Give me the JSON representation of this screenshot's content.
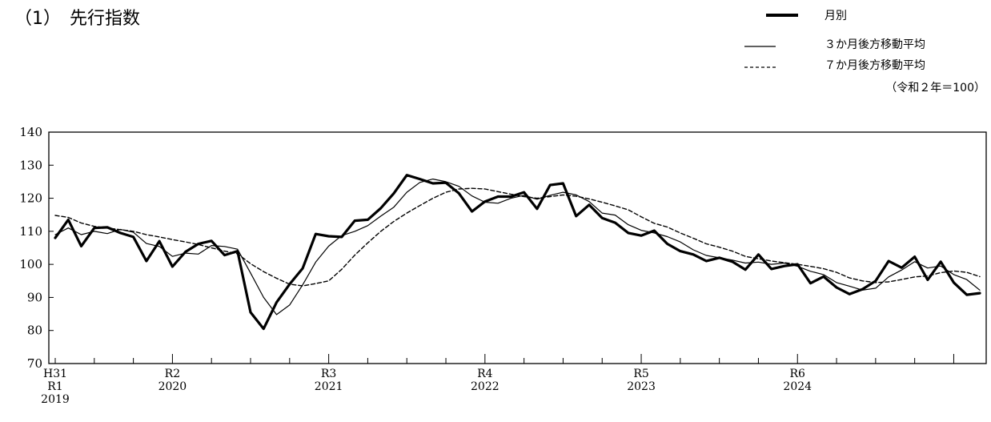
{
  "page": {
    "title": "（1）　先行指数",
    "unit_note": "（令和２年＝100）"
  },
  "chart_data": {
    "type": "line",
    "title": "（1）　先行指数",
    "ylim": [
      70,
      140
    ],
    "yticks": [
      70,
      80,
      90,
      100,
      110,
      120,
      130,
      140
    ],
    "grid": false,
    "legend_position": "top-right",
    "x_period": {
      "start": "2019-04",
      "end": "2024-12",
      "step": "month"
    },
    "x_tick_labels": [
      {
        "month": "2019-04",
        "lines": [
          "H31",
          "R1",
          "2019"
        ]
      },
      {
        "month": "2020-01",
        "lines": [
          "R2",
          "2020"
        ]
      },
      {
        "month": "2021-01",
        "lines": [
          "R3",
          "2021"
        ]
      },
      {
        "month": "2022-01",
        "lines": [
          "R4",
          "2022"
        ]
      },
      {
        "month": "2023-01",
        "lines": [
          "R5",
          "2023"
        ]
      },
      {
        "month": "2024-01",
        "lines": [
          "R6",
          "2024"
        ]
      }
    ],
    "series": [
      {
        "name": "月別",
        "style": "thick",
        "values": [
          108.0,
          113.5,
          105.5,
          111.0,
          111.2,
          109.5,
          108.3,
          101.0,
          107.0,
          99.3,
          103.8,
          106.2,
          107.1,
          102.8,
          104.0,
          85.5,
          80.5,
          88.5,
          94.0,
          98.8,
          109.2,
          108.5,
          108.3,
          113.2,
          113.5,
          117.0,
          121.5,
          127.0,
          125.8,
          124.5,
          124.7,
          121.5,
          116.0,
          119.0,
          120.5,
          120.5,
          121.8,
          116.8,
          124.0,
          124.5,
          114.6,
          118.0,
          114.0,
          112.6,
          109.5,
          108.7,
          110.2,
          106.2,
          104.0,
          103.0,
          101.0,
          102.0,
          100.8,
          98.4,
          103.0,
          98.6,
          99.5,
          100.0,
          94.3,
          96.3,
          93.0,
          91.0,
          92.5,
          95.0,
          101.0,
          99.0,
          102.3,
          95.3,
          100.8,
          94.5,
          90.8,
          91.3
        ]
      },
      {
        "name": "３か月後方移動平均",
        "style": "thin",
        "values": [
          109.0,
          111.0,
          109.0,
          110.0,
          109.3,
          110.6,
          109.7,
          106.3,
          105.4,
          102.4,
          103.4,
          103.1,
          105.7,
          105.4,
          104.6,
          97.4,
          90.0,
          84.8,
          87.7,
          93.8,
          100.7,
          105.5,
          108.7,
          110.0,
          111.7,
          114.6,
          117.3,
          121.8,
          124.8,
          125.8,
          125.0,
          123.6,
          120.7,
          118.8,
          118.5,
          120.0,
          120.9,
          119.7,
          120.9,
          121.8,
          121.0,
          119.0,
          115.5,
          114.9,
          112.0,
          110.3,
          109.5,
          108.4,
          106.8,
          104.4,
          102.7,
          102.0,
          101.3,
          100.4,
          100.7,
          100.0,
          100.4,
          99.4,
          97.9,
          96.9,
          94.5,
          93.4,
          92.2,
          92.8,
          96.2,
          98.3,
          100.8,
          98.9,
          99.5,
          96.9,
          95.4,
          92.2
        ]
      },
      {
        "name": "７か月後方移動平均",
        "style": "dashed",
        "values": [
          114.8,
          114.2,
          112.5,
          111.5,
          111.0,
          110.5,
          110.0,
          109.0,
          108.3,
          107.5,
          106.8,
          106.0,
          105.0,
          104.0,
          103.2,
          100.2,
          97.8,
          95.8,
          94.0,
          93.5,
          94.2,
          95.0,
          98.5,
          102.8,
          106.5,
          110.0,
          113.0,
          115.5,
          117.8,
          120.0,
          121.8,
          122.8,
          123.0,
          122.8,
          122.0,
          121.2,
          120.5,
          120.0,
          120.5,
          121.0,
          120.6,
          119.8,
          118.8,
          117.7,
          116.5,
          114.4,
          112.4,
          111.3,
          109.5,
          107.9,
          106.2,
          105.2,
          104.0,
          102.4,
          101.7,
          101.0,
          100.5,
          100.0,
          99.4,
          98.7,
          97.6,
          95.9,
          95.0,
          94.5,
          94.7,
          95.4,
          96.2,
          96.5,
          97.5,
          98.0,
          97.6,
          96.3
        ]
      }
    ]
  }
}
